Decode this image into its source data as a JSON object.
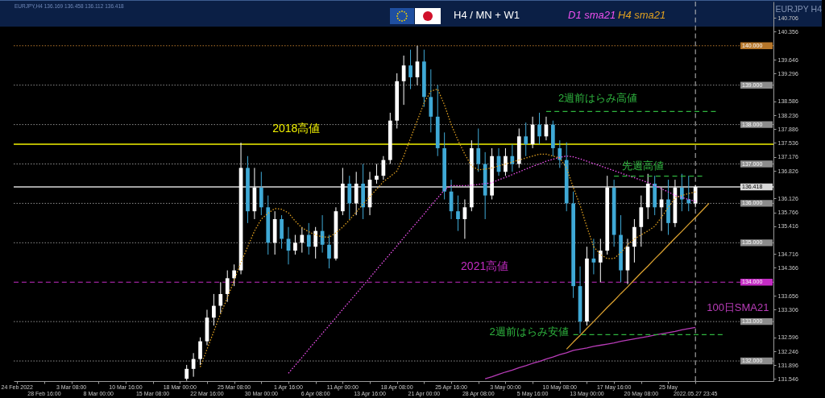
{
  "chart_data": {
    "type": "candlestick",
    "title": "EURJPY H4",
    "subtitle": "EURJPY,H4  136.169 136.458 136.112 136.418",
    "annotations": [
      "H4 / MN + W1",
      {
        "text": "2021高値",
        "y": 134
      }
    ],
    "categories": [
      "24 Feb 2022",
      null,
      null,
      null,
      "28 Feb 16:00",
      null,
      null,
      null,
      "3 Mar 08:00",
      null,
      null,
      null,
      "8 Mar 00:00",
      null,
      null,
      null,
      "10 Mar 16:00",
      null,
      null,
      null,
      "15 Mar 08:00",
      null,
      null,
      null,
      "18 Mar 00:00",
      null,
      null,
      null,
      "22 Mar 16:00",
      null,
      null,
      null,
      "25 Mar 08:00",
      null,
      null,
      null,
      "30 Mar 00:00",
      null,
      null,
      null,
      "1 Apr 16:00",
      null,
      null,
      null,
      "6 Apr 08:00",
      null,
      null,
      null,
      "11 Apr 00:00",
      null,
      null,
      null,
      "13 Apr 16:00",
      null,
      null,
      null,
      "18 Apr 08:00",
      null,
      null,
      null,
      "21 Apr 00:00",
      null,
      null,
      null,
      "25 Apr 16:00",
      null,
      null,
      null,
      "28 Apr 08:00",
      null,
      null,
      null,
      "3 May 00:00",
      null,
      null,
      null,
      "5 May 16:00",
      null,
      null,
      null,
      "10 May 08:00",
      null,
      null,
      null,
      "13 May 00:00",
      null,
      null,
      null,
      "17 May 16:00",
      null,
      null,
      null,
      "20 May 08:00",
      null,
      null,
      null,
      "25 May",
      null,
      null,
      null,
      "2022.05.27 23:45",
      null,
      null,
      null,
      null,
      null,
      null,
      null,
      null,
      null,
      null,
      null
    ],
    "ohlc": [
      null,
      null,
      null,
      null,
      null,
      null,
      null,
      null,
      null,
      null,
      null,
      null,
      null,
      null,
      null,
      null,
      null,
      null,
      null,
      null,
      null,
      null,
      null,
      null,
      null,
      [
        131.55,
        131.9,
        131.5,
        131.8
      ],
      [
        131.8,
        132.2,
        131.6,
        132.05
      ],
      [
        132.05,
        132.6,
        131.9,
        132.5
      ],
      [
        132.5,
        133.3,
        132.4,
        133.1
      ],
      [
        133.1,
        133.7,
        132.9,
        133.4
      ],
      [
        133.4,
        134.0,
        133.2,
        133.7
      ],
      [
        133.7,
        134.3,
        133.5,
        134.1
      ],
      [
        134.1,
        134.45,
        133.9,
        134.3
      ],
      [
        134.3,
        137.54,
        134.2,
        136.9
      ],
      [
        136.9,
        137.2,
        135.5,
        135.8
      ],
      [
        135.8,
        136.9,
        135.6,
        136.4
      ],
      [
        136.4,
        136.8,
        135.7,
        135.9
      ],
      [
        135.9,
        136.2,
        134.7,
        135.0
      ],
      [
        135.0,
        135.8,
        134.7,
        135.6
      ],
      [
        135.6,
        135.7,
        134.85,
        135.1
      ],
      [
        135.1,
        135.4,
        134.45,
        134.8
      ],
      [
        134.8,
        135.2,
        134.7,
        135.0
      ],
      [
        135.0,
        135.4,
        134.75,
        135.2
      ],
      [
        135.2,
        135.5,
        134.7,
        134.9
      ],
      [
        134.9,
        135.4,
        134.6,
        135.3
      ],
      [
        135.3,
        135.7,
        134.75,
        134.95
      ],
      [
        134.95,
        135.2,
        134.35,
        134.6
      ],
      [
        134.6,
        135.9,
        134.55,
        135.8
      ],
      [
        135.8,
        136.9,
        135.7,
        136.5
      ],
      [
        136.5,
        136.7,
        135.6,
        136.0
      ],
      [
        136.0,
        136.8,
        135.7,
        136.5
      ],
      [
        136.5,
        137.0,
        135.6,
        135.9
      ],
      [
        135.9,
        136.8,
        135.7,
        136.6
      ],
      [
        136.6,
        137.0,
        136.5,
        136.7
      ],
      [
        136.7,
        137.2,
        136.6,
        137.1
      ],
      [
        137.1,
        138.3,
        137.0,
        138.1
      ],
      [
        138.1,
        139.3,
        137.9,
        139.1
      ],
      [
        139.1,
        139.75,
        138.5,
        139.5
      ],
      [
        139.5,
        139.9,
        138.9,
        139.2
      ],
      [
        139.2,
        140.0,
        139.0,
        139.6
      ],
      [
        139.6,
        139.9,
        138.45,
        138.7
      ],
      [
        138.7,
        139.4,
        137.8,
        138.2
      ],
      [
        138.2,
        139.0,
        137.2,
        137.4
      ],
      [
        137.4,
        137.8,
        136.1,
        136.3
      ],
      [
        136.3,
        136.6,
        135.6,
        135.8
      ],
      [
        135.8,
        136.2,
        135.3,
        135.6
      ],
      [
        135.6,
        136.1,
        135.1,
        135.9
      ],
      [
        135.9,
        137.6,
        135.8,
        137.4
      ],
      [
        137.4,
        137.9,
        136.8,
        137.0
      ],
      [
        137.0,
        137.3,
        135.6,
        136.2
      ],
      [
        136.2,
        137.4,
        136.1,
        137.2
      ],
      [
        137.2,
        137.4,
        136.7,
        136.8
      ],
      [
        136.8,
        137.4,
        136.7,
        137.2
      ],
      [
        137.2,
        137.5,
        136.8,
        137.0
      ],
      [
        137.0,
        137.9,
        136.9,
        137.7
      ],
      [
        137.7,
        138.05,
        137.2,
        137.5
      ],
      [
        137.5,
        138.2,
        137.4,
        138.0
      ],
      [
        138.0,
        138.3,
        137.5,
        137.7
      ],
      [
        137.7,
        138.2,
        137.6,
        138.0
      ],
      [
        138.0,
        138.1,
        137.2,
        137.4
      ],
      [
        137.4,
        137.6,
        136.9,
        137.1
      ],
      [
        137.1,
        137.55,
        135.8,
        136.0
      ],
      [
        136.0,
        136.3,
        133.6,
        133.9
      ],
      [
        133.9,
        134.4,
        132.7,
        133.0
      ],
      [
        133.0,
        134.9,
        132.9,
        134.6
      ],
      [
        134.6,
        135.1,
        134.2,
        134.5
      ],
      [
        134.5,
        135.1,
        134.0,
        134.8
      ],
      [
        134.8,
        136.7,
        134.7,
        136.4
      ],
      [
        136.4,
        136.6,
        134.9,
        135.2
      ],
      [
        135.2,
        135.7,
        134.0,
        134.3
      ],
      [
        134.3,
        135.1,
        133.95,
        134.9
      ],
      [
        134.9,
        135.6,
        134.5,
        135.4
      ],
      [
        135.4,
        136.2,
        134.9,
        135.9
      ],
      [
        135.9,
        136.75,
        135.6,
        136.5
      ],
      [
        136.5,
        136.7,
        135.7,
        135.9
      ],
      [
        135.9,
        136.4,
        135.3,
        136.1
      ],
      [
        136.1,
        136.6,
        135.2,
        135.5
      ],
      [
        135.5,
        136.6,
        135.4,
        136.4
      ],
      [
        136.4,
        136.75,
        135.8,
        136.1
      ],
      [
        136.1,
        136.7,
        135.8,
        136.0
      ],
      [
        136.0,
        136.46,
        135.9,
        136.418
      ],
      null,
      null,
      null,
      null,
      null,
      null,
      null,
      null,
      null,
      null,
      null
    ],
    "colors": [
      null,
      null,
      null,
      null,
      null,
      null,
      null,
      null,
      null,
      null,
      null,
      null,
      null,
      null,
      null,
      null,
      null,
      null,
      null,
      null,
      null,
      null,
      null,
      null,
      null,
      "#ffffff",
      "#ffffff",
      "#ffffff",
      "#ffffff",
      "#ffffff",
      "#ffffff",
      "#ffffff",
      "#ffffff",
      "#ffffff",
      "#3fa9d6",
      "#ffffff",
      "#3fa9d6",
      "#3fa9d6",
      "#ffffff",
      "#3fa9d6",
      "#3fa9d6",
      "#ffffff",
      "#ffffff",
      "#3fa9d6",
      "#ffffff",
      "#3fa9d6",
      "#3fa9d6",
      "#ffffff",
      "#ffffff",
      "#3fa9d6",
      "#ffffff",
      "#3fa9d6",
      "#ffffff",
      "#ffffff",
      "#ffffff",
      "#ffffff",
      "#ffffff",
      "#ffffff",
      "#3fa9d6",
      "#ffffff",
      "#3fa9d6",
      "#3fa9d6",
      "#3fa9d6",
      "#3fa9d6",
      "#3fa9d6",
      "#3fa9d6",
      "#ffffff",
      "#ffffff",
      "#3fa9d6",
      "#3fa9d6",
      "#ffffff",
      "#3fa9d6",
      "#ffffff",
      "#3fa9d6",
      "#ffffff",
      "#3fa9d6",
      "#ffffff",
      "#3fa9d6",
      "#ffffff",
      "#3fa9d6",
      "#3fa9d6",
      "#3fa9d6",
      "#3fa9d6",
      "#3fa9d6",
      "#ffffff",
      "#3fa9d6",
      "#ffffff",
      "#ffffff",
      "#3fa9d6",
      "#3fa9d6",
      "#ffffff",
      "#ffffff",
      "#ffffff",
      "#ffffff",
      "#3fa9d6",
      "#ffffff",
      "#3fa9d6",
      "#ffffff",
      "#3fa9d6",
      "#3fa9d6",
      "#ffffff",
      null,
      null,
      null,
      null,
      null,
      null,
      null,
      null,
      null,
      null,
      null
    ],
    "series": [
      {
        "type": "line",
        "name": "D1 sma21",
        "color": "#f050f0",
        "line_style": "dotted",
        "values": [
          null,
          null,
          null,
          null,
          null,
          null,
          null,
          null,
          null,
          null,
          null,
          null,
          null,
          null,
          null,
          null,
          null,
          null,
          null,
          null,
          null,
          null,
          null,
          null,
          null,
          null,
          null,
          null,
          null,
          null,
          null,
          null,
          null,
          null,
          null,
          null,
          null,
          null,
          null,
          null,
          131.69,
          131.89,
          132.09,
          132.3,
          132.5,
          132.7,
          132.9,
          133.1,
          133.31,
          133.51,
          133.71,
          133.91,
          134.11,
          134.32,
          134.52,
          134.72,
          134.92,
          135.13,
          135.33,
          135.53,
          135.73,
          135.94,
          136.14,
          136.34,
          136.45,
          136.45,
          136.45,
          136.46,
          136.48,
          136.5,
          136.52,
          136.6,
          136.66,
          136.73,
          136.8,
          136.87,
          136.94,
          137.0,
          137.07,
          137.12,
          137.17,
          137.2,
          137.18,
          137.13,
          137.07,
          137.01,
          136.95,
          136.89,
          136.83,
          136.77,
          136.71,
          136.65,
          136.59,
          136.53,
          136.45,
          136.37,
          136.29,
          136.2,
          136.15,
          136.1,
          136.05,
          null,
          null,
          null,
          null,
          null,
          null,
          null,
          null,
          null,
          null,
          null
        ]
      },
      {
        "type": "line",
        "name": "H4 sma21",
        "color": "#e0a020",
        "line_style": "dotted",
        "values": [
          null,
          null,
          null,
          null,
          null,
          null,
          null,
          null,
          null,
          null,
          null,
          null,
          null,
          null,
          null,
          null,
          null,
          null,
          null,
          null,
          null,
          null,
          null,
          null,
          null,
          null,
          null,
          131.85,
          132.3,
          132.75,
          133.2,
          133.6,
          134.05,
          134.5,
          134.9,
          135.3,
          135.6,
          135.75,
          135.87,
          135.85,
          135.76,
          135.55,
          135.38,
          135.28,
          135.2,
          135.15,
          135.14,
          135.25,
          135.4,
          135.58,
          135.78,
          135.98,
          136.17,
          136.36,
          136.55,
          136.68,
          136.82,
          137.2,
          137.65,
          138.1,
          138.55,
          138.85,
          138.9,
          138.5,
          138.0,
          137.6,
          137.25,
          136.95,
          136.85,
          136.87,
          136.9,
          136.95,
          137.0,
          137.05,
          137.1,
          137.15,
          137.2,
          137.25,
          137.25,
          137.2,
          137.15,
          136.9,
          136.4,
          135.95,
          135.4,
          134.9,
          134.7,
          134.6,
          134.6,
          134.75,
          134.95,
          135.1,
          135.2,
          135.3,
          135.42,
          135.65,
          135.9,
          136.14,
          136.2,
          136.25,
          136.29,
          null,
          null,
          null,
          null,
          null,
          null,
          null,
          null,
          null,
          null,
          null
        ]
      },
      {
        "type": "line",
        "name": "100日SMA21",
        "color": "#b83cb8",
        "line_style": "solid",
        "values": [
          null,
          null,
          null,
          null,
          null,
          null,
          null,
          null,
          null,
          null,
          null,
          null,
          null,
          null,
          null,
          null,
          null,
          null,
          null,
          null,
          null,
          null,
          null,
          null,
          null,
          null,
          null,
          null,
          null,
          null,
          null,
          null,
          null,
          null,
          null,
          null,
          null,
          null,
          null,
          null,
          null,
          null,
          null,
          null,
          null,
          null,
          null,
          null,
          null,
          null,
          null,
          null,
          null,
          null,
          null,
          null,
          null,
          null,
          null,
          null,
          null,
          null,
          null,
          null,
          null,
          null,
          null,
          null,
          null,
          131.55,
          131.6,
          131.66,
          131.72,
          131.77,
          131.83,
          131.88,
          131.94,
          131.99,
          132.05,
          132.1,
          132.16,
          132.21,
          132.27,
          132.3,
          132.33,
          132.37,
          132.4,
          132.43,
          132.46,
          132.5,
          132.53,
          132.56,
          132.59,
          132.62,
          132.66,
          132.69,
          132.72,
          132.75,
          132.79,
          132.82,
          132.85,
          null,
          null,
          null,
          null,
          null,
          null,
          null,
          null,
          null,
          null,
          null
        ]
      },
      {
        "type": "line",
        "name": "2週前はらみ高値",
        "color": "#2fb53f",
        "line_style": "dashed",
        "values": [
          null,
          null,
          null,
          null,
          null,
          null,
          null,
          null,
          null,
          null,
          null,
          null,
          null,
          null,
          null,
          null,
          null,
          null,
          null,
          null,
          null,
          null,
          null,
          null,
          null,
          null,
          null,
          null,
          null,
          null,
          null,
          null,
          null,
          null,
          null,
          null,
          null,
          null,
          null,
          null,
          null,
          null,
          null,
          null,
          null,
          null,
          null,
          null,
          null,
          null,
          null,
          null,
          null,
          null,
          null,
          null,
          null,
          null,
          null,
          null,
          null,
          null,
          null,
          null,
          null,
          null,
          null,
          null,
          null,
          null,
          null,
          null,
          null,
          null,
          null,
          null,
          null,
          null,
          138.33,
          138.33,
          138.33,
          138.33,
          138.33,
          138.33,
          138.33,
          138.33,
          138.33,
          138.33,
          138.33,
          138.33,
          138.33,
          138.33,
          138.33,
          138.33,
          138.33,
          138.33,
          138.33,
          138.33,
          138.33,
          138.33,
          138.33,
          138.33,
          138.33,
          138.33,
          null,
          null,
          null,
          null,
          null,
          null,
          null,
          null
        ]
      },
      {
        "type": "line",
        "name": "2週前はらみ安値",
        "color": "#2fb53f",
        "line_style": "dashed",
        "values": [
          null,
          null,
          null,
          null,
          null,
          null,
          null,
          null,
          null,
          null,
          null,
          null,
          null,
          null,
          null,
          null,
          null,
          null,
          null,
          null,
          null,
          null,
          null,
          null,
          null,
          null,
          null,
          null,
          null,
          null,
          null,
          null,
          null,
          null,
          null,
          null,
          null,
          null,
          null,
          null,
          null,
          null,
          null,
          null,
          null,
          null,
          null,
          null,
          null,
          null,
          null,
          null,
          null,
          null,
          null,
          null,
          null,
          null,
          null,
          null,
          null,
          null,
          null,
          null,
          null,
          null,
          null,
          null,
          null,
          null,
          null,
          null,
          null,
          null,
          null,
          null,
          null,
          null,
          null,
          null,
          null,
          null,
          132.67,
          132.67,
          132.67,
          132.67,
          132.67,
          132.67,
          132.67,
          132.67,
          132.67,
          132.67,
          132.67,
          132.67,
          132.67,
          132.67,
          132.67,
          132.67,
          132.67,
          132.67,
          132.67,
          132.67,
          132.67,
          132.67,
          132.67,
          null,
          null,
          null,
          null,
          null,
          null,
          null
        ]
      },
      {
        "type": "line",
        "name": "先週高値",
        "color": "#2fb53f",
        "line_style": "dashed",
        "values": [
          null,
          null,
          null,
          null,
          null,
          null,
          null,
          null,
          null,
          null,
          null,
          null,
          null,
          null,
          null,
          null,
          null,
          null,
          null,
          null,
          null,
          null,
          null,
          null,
          null,
          null,
          null,
          null,
          null,
          null,
          null,
          null,
          null,
          null,
          null,
          null,
          null,
          null,
          null,
          null,
          null,
          null,
          null,
          null,
          null,
          null,
          null,
          null,
          null,
          null,
          null,
          null,
          null,
          null,
          null,
          null,
          null,
          null,
          null,
          null,
          null,
          null,
          null,
          null,
          null,
          null,
          null,
          null,
          null,
          null,
          null,
          null,
          null,
          null,
          null,
          null,
          null,
          null,
          null,
          null,
          null,
          null,
          null,
          null,
          null,
          null,
          null,
          null,
          136.69,
          136.69,
          136.69,
          136.69,
          136.69,
          136.69,
          136.69,
          136.69,
          136.69,
          136.69,
          136.69,
          136.69,
          136.69,
          136.69,
          null,
          null,
          null,
          null,
          null,
          null,
          null,
          null,
          null,
          null
        ]
      },
      {
        "type": "line",
        "color": "#d9a030",
        "line_style": "solid",
        "values": [
          null,
          null,
          null,
          null,
          null,
          null,
          null,
          null,
          null,
          null,
          null,
          null,
          null,
          null,
          null,
          null,
          null,
          null,
          null,
          null,
          null,
          null,
          null,
          null,
          null,
          null,
          null,
          null,
          null,
          null,
          null,
          null,
          null,
          null,
          null,
          null,
          null,
          null,
          null,
          null,
          null,
          null,
          null,
          null,
          null,
          null,
          null,
          null,
          null,
          null,
          null,
          null,
          null,
          null,
          null,
          null,
          null,
          null,
          null,
          null,
          null,
          null,
          null,
          null,
          null,
          null,
          null,
          null,
          null,
          null,
          null,
          null,
          null,
          null,
          null,
          null,
          null,
          null,
          null,
          null,
          null,
          132.3,
          132.48,
          132.65,
          132.83,
          133.0,
          133.18,
          133.36,
          133.53,
          133.71,
          133.88,
          134.06,
          134.24,
          134.41,
          134.59,
          134.76,
          134.94,
          135.12,
          135.29,
          135.47,
          135.64,
          135.82,
          136.0,
          null,
          null,
          null,
          null,
          null,
          null,
          null,
          null,
          null
        ]
      }
    ],
    "ylim": [
      131.49,
      141.12
    ],
    "yticks": [
      131.546,
      131.896,
      132.246,
      132.596,
      133.306,
      133.656,
      134.366,
      134.716,
      135.416,
      135.766,
      136.126,
      136.826,
      137.176,
      137.536,
      137.886,
      138.236,
      138.586,
      139.296,
      139.646,
      140.356,
      140.706
    ],
    "ref_lines": [
      {
        "axis": "y",
        "value": 140,
        "label": "140.000",
        "color": "#b5762a",
        "line_style": "dotted"
      },
      {
        "axis": "y",
        "value": 139,
        "label": "139.000",
        "color": "#8c8c8c",
        "line_style": "dotted"
      },
      {
        "axis": "y",
        "value": 138,
        "label": "138.000",
        "color": "#8c8c8c",
        "line_style": "dotted"
      },
      {
        "axis": "y",
        "value": 137.5,
        "label": "2018高値",
        "color": "#f2f200",
        "line_style": "solid"
      },
      {
        "axis": "y",
        "value": 137,
        "label": "137.000",
        "color": "#8c8c8c",
        "line_style": "dotted"
      },
      {
        "axis": "y",
        "value": 136.418,
        "label": "136.418",
        "color": "#d8d8d8",
        "line_style": "solid"
      },
      {
        "axis": "y",
        "value": 136,
        "label": "136.000",
        "color": "#8c8c8c",
        "line_style": "dotted"
      },
      {
        "axis": "y",
        "value": 135,
        "label": "135.000",
        "color": "#8c8c8c",
        "line_style": "dotted"
      },
      {
        "axis": "y",
        "value": 134,
        "label": "134.000",
        "color": "#c42cc4",
        "line_style": "dashed"
      },
      {
        "axis": "y",
        "value": 133,
        "label": "133.000",
        "color": "#8c8c8c",
        "line_style": "dotted"
      },
      {
        "axis": "y",
        "value": 132,
        "label": "132.000",
        "color": "#8c8c8c",
        "line_style": "dotted"
      },
      {
        "axis": "x",
        "value": "2022.05.27 23:45",
        "color": "#bfbfbf",
        "line_style": "dashed"
      }
    ]
  }
}
